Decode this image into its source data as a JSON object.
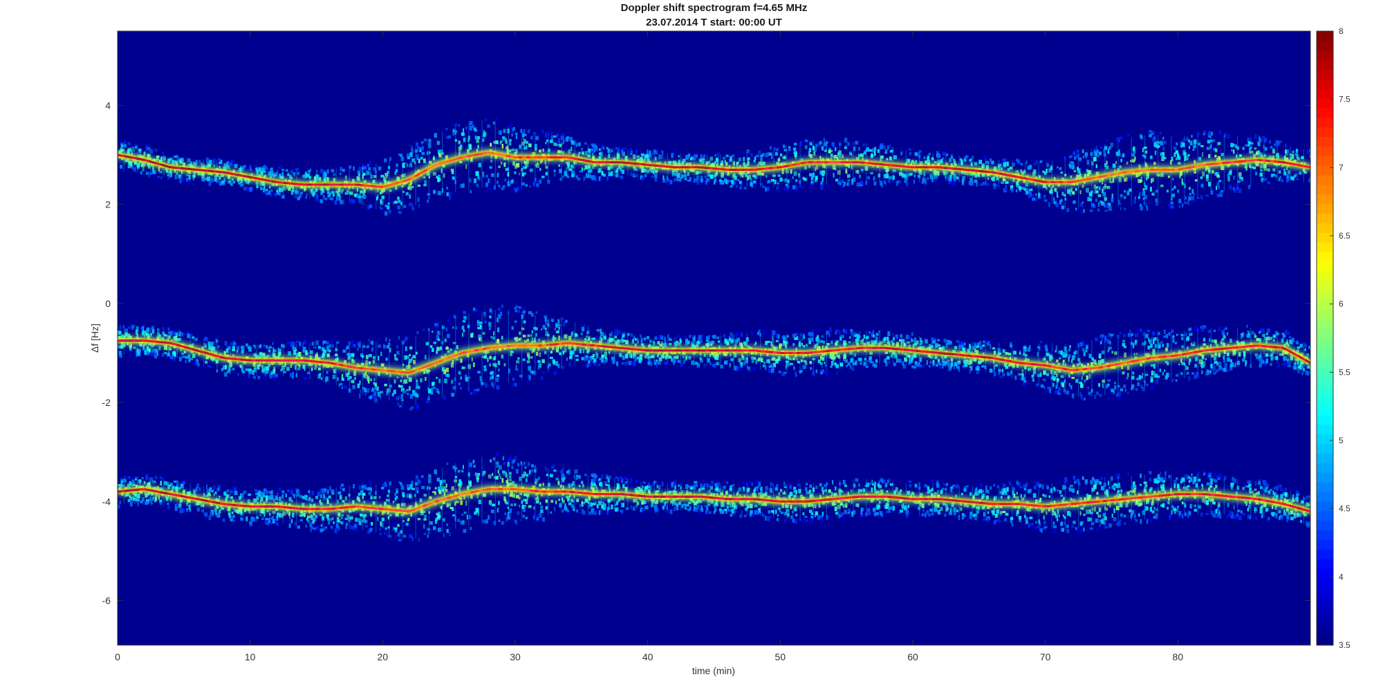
{
  "chart_data": {
    "type": "heatmap",
    "title": "Doppler shift spectrogram f=4.65 MHz",
    "subtitle": "23.07.2014   T start: 00:00 UT",
    "xlabel": "time (min)",
    "ylabel": "Δf [Hz]",
    "xlim": [
      0,
      90
    ],
    "ylim": [
      -6.9,
      5.5
    ],
    "x_ticks": [
      0,
      10,
      20,
      30,
      40,
      50,
      60,
      70,
      80
    ],
    "y_ticks": [
      4,
      2,
      0,
      -2,
      -4,
      -6
    ],
    "colormap": "jet",
    "color_range": [
      3.5,
      8
    ],
    "colorbar_ticks": [
      8,
      7.5,
      7,
      6.5,
      6,
      5.5,
      5,
      4.5,
      4,
      3.5
    ],
    "background_color": "#00008f",
    "traces": [
      {
        "x": [
          0,
          2,
          4,
          6,
          8,
          10,
          12,
          14,
          16,
          18,
          20,
          22,
          24,
          26,
          28,
          30,
          32,
          34,
          36,
          38,
          40,
          42,
          44,
          46,
          48,
          50,
          52,
          54,
          56,
          58,
          60,
          62,
          64,
          66,
          68,
          70,
          72,
          74,
          76,
          78,
          80,
          82,
          84,
          86,
          88,
          90
        ],
        "y": [
          3.0,
          2.9,
          2.75,
          2.7,
          2.65,
          2.55,
          2.45,
          2.4,
          2.4,
          2.4,
          2.35,
          2.5,
          2.8,
          2.95,
          3.05,
          2.95,
          2.95,
          2.95,
          2.85,
          2.85,
          2.8,
          2.75,
          2.75,
          2.7,
          2.7,
          2.75,
          2.85,
          2.85,
          2.85,
          2.8,
          2.75,
          2.75,
          2.7,
          2.65,
          2.55,
          2.45,
          2.45,
          2.55,
          2.65,
          2.7,
          2.7,
          2.8,
          2.85,
          2.9,
          2.85,
          2.75
        ],
        "spread": [
          0.3,
          0.3,
          0.25,
          0.25,
          0.25,
          0.25,
          0.3,
          0.3,
          0.35,
          0.4,
          0.55,
          0.65,
          0.7,
          0.75,
          0.75,
          0.65,
          0.55,
          0.45,
          0.35,
          0.3,
          0.3,
          0.3,
          0.3,
          0.35,
          0.4,
          0.45,
          0.5,
          0.5,
          0.45,
          0.4,
          0.35,
          0.3,
          0.3,
          0.3,
          0.35,
          0.45,
          0.6,
          0.7,
          0.75,
          0.8,
          0.75,
          0.7,
          0.6,
          0.5,
          0.4,
          0.35
        ]
      },
      {
        "x": [
          0,
          2,
          4,
          6,
          8,
          10,
          12,
          14,
          16,
          18,
          20,
          22,
          24,
          26,
          28,
          30,
          32,
          34,
          36,
          38,
          40,
          42,
          44,
          46,
          48,
          50,
          52,
          54,
          56,
          58,
          60,
          62,
          64,
          66,
          68,
          70,
          72,
          74,
          76,
          78,
          80,
          82,
          84,
          86,
          88,
          90
        ],
        "y": [
          -0.75,
          -0.75,
          -0.8,
          -0.95,
          -1.1,
          -1.15,
          -1.15,
          -1.15,
          -1.2,
          -1.3,
          -1.35,
          -1.4,
          -1.2,
          -1.0,
          -0.9,
          -0.85,
          -0.85,
          -0.8,
          -0.85,
          -0.9,
          -0.95,
          -0.95,
          -0.95,
          -0.95,
          -0.95,
          -1.0,
          -1.0,
          -0.95,
          -0.9,
          -0.9,
          -0.95,
          -1.0,
          -1.05,
          -1.1,
          -1.2,
          -1.25,
          -1.35,
          -1.3,
          -1.2,
          -1.1,
          -1.05,
          -0.95,
          -0.9,
          -0.85,
          -0.9,
          -1.2
        ],
        "spread": [
          0.3,
          0.3,
          0.3,
          0.3,
          0.35,
          0.35,
          0.35,
          0.4,
          0.45,
          0.55,
          0.65,
          0.75,
          0.8,
          0.85,
          0.85,
          0.8,
          0.65,
          0.5,
          0.4,
          0.35,
          0.3,
          0.3,
          0.3,
          0.35,
          0.4,
          0.45,
          0.45,
          0.45,
          0.4,
          0.35,
          0.35,
          0.3,
          0.3,
          0.35,
          0.4,
          0.5,
          0.6,
          0.65,
          0.65,
          0.6,
          0.55,
          0.5,
          0.45,
          0.4,
          0.35,
          0.3
        ]
      },
      {
        "x": [
          0,
          2,
          4,
          6,
          8,
          10,
          12,
          14,
          16,
          18,
          20,
          22,
          24,
          26,
          28,
          30,
          32,
          34,
          36,
          38,
          40,
          42,
          44,
          46,
          48,
          50,
          52,
          54,
          56,
          58,
          60,
          62,
          64,
          66,
          68,
          70,
          72,
          74,
          76,
          78,
          80,
          82,
          84,
          86,
          88,
          90
        ],
        "y": [
          -3.8,
          -3.75,
          -3.85,
          -3.95,
          -4.05,
          -4.1,
          -4.1,
          -4.15,
          -4.15,
          -4.1,
          -4.15,
          -4.2,
          -4.0,
          -3.85,
          -3.75,
          -3.75,
          -3.8,
          -3.8,
          -3.85,
          -3.85,
          -3.9,
          -3.9,
          -3.9,
          -3.95,
          -3.95,
          -4.0,
          -4.0,
          -3.95,
          -3.9,
          -3.9,
          -3.95,
          -3.95,
          -4.0,
          -4.05,
          -4.05,
          -4.1,
          -4.05,
          -4.0,
          -3.95,
          -3.9,
          -3.85,
          -3.85,
          -3.9,
          -3.95,
          -4.05,
          -4.2
        ],
        "spread": [
          0.3,
          0.3,
          0.3,
          0.3,
          0.35,
          0.35,
          0.35,
          0.4,
          0.45,
          0.5,
          0.55,
          0.65,
          0.7,
          0.75,
          0.75,
          0.65,
          0.55,
          0.45,
          0.4,
          0.35,
          0.3,
          0.3,
          0.3,
          0.35,
          0.35,
          0.4,
          0.4,
          0.4,
          0.4,
          0.35,
          0.35,
          0.35,
          0.35,
          0.4,
          0.45,
          0.5,
          0.55,
          0.55,
          0.5,
          0.5,
          0.45,
          0.45,
          0.4,
          0.4,
          0.35,
          0.3
        ]
      }
    ]
  }
}
